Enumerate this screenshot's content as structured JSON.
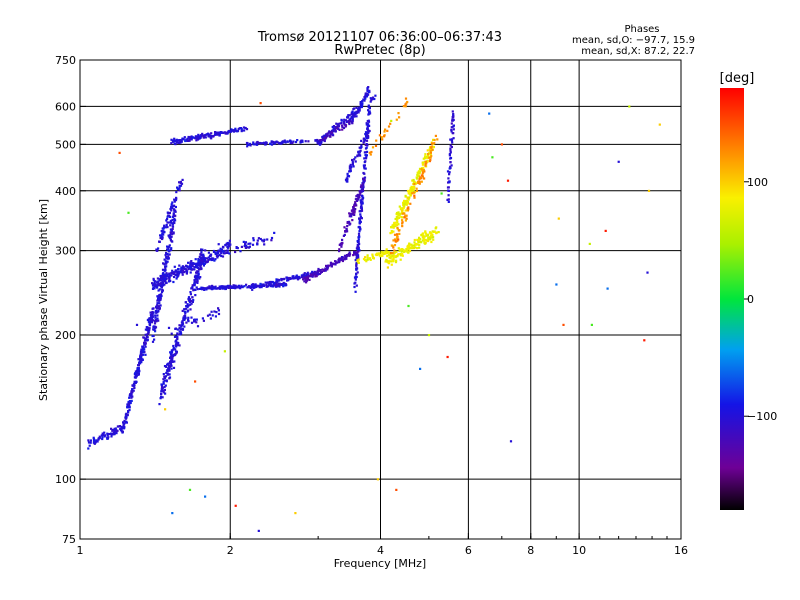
{
  "header": {
    "title_line1": "Tromsø 20121107 06:36:00–06:37:43",
    "title_line2": "RwPretec (8p)",
    "stats_title": "Phases",
    "stats_o": "mean, sd,O: −97.7, 15.9",
    "stats_x": "mean, sd,X: 87.2, 22.7"
  },
  "colorbar": {
    "unit_label": "[deg]",
    "ticks": [
      {
        "value": 100,
        "label": "100"
      },
      {
        "value": 0,
        "label": "0"
      },
      {
        "value": -100,
        "label": "−100"
      }
    ],
    "min": -180,
    "max": 180
  },
  "chart_data": {
    "type": "scatter",
    "xlabel": "Frequency [MHz]",
    "ylabel": "Stationary phase Virtual Height [km]",
    "xscale": "log",
    "yscale": "log",
    "xlim": [
      1,
      16
    ],
    "ylim": [
      75,
      750
    ],
    "x_ticks": [
      {
        "value": 1,
        "label": "1"
      },
      {
        "value": 2,
        "label": "2"
      },
      {
        "value": 4,
        "label": "4"
      },
      {
        "value": 6,
        "label": "6"
      },
      {
        "value": 8,
        "label": "8"
      },
      {
        "value": 10,
        "label": "10"
      },
      {
        "value": 16,
        "label": "16"
      }
    ],
    "x_gridlines": [
      2,
      4,
      6,
      8,
      10
    ],
    "y_ticks": [
      {
        "value": 75,
        "label": "75"
      },
      {
        "value": 100,
        "label": "100"
      },
      {
        "value": 200,
        "label": "200"
      },
      {
        "value": 300,
        "label": "300"
      },
      {
        "value": 400,
        "label": "400"
      },
      {
        "value": 500,
        "label": "500"
      },
      {
        "value": 600,
        "label": "600"
      },
      {
        "value": 750,
        "label": "750"
      }
    ],
    "y_gridlines": [
      100,
      200,
      300,
      400,
      500,
      600
    ],
    "grid": true,
    "series": [
      {
        "phase_deg": -100,
        "segments": [
          {
            "f0": 1.03,
            "f1": 1.22,
            "h0": 118,
            "h1": 128,
            "spread": 0.03,
            "n": 70
          },
          {
            "f0": 1.22,
            "f1": 1.4,
            "h0": 128,
            "h1": 225,
            "spread": 0.05,
            "n": 230
          },
          {
            "f0": 1.4,
            "f1": 1.55,
            "h0": 200,
            "h1": 360,
            "spread": 0.06,
            "n": 180
          },
          {
            "f0": 1.45,
            "f1": 1.78,
            "h0": 150,
            "h1": 300,
            "spread": 0.08,
            "n": 260
          },
          {
            "f0": 1.42,
            "f1": 1.6,
            "h0": 300,
            "h1": 420,
            "spread": 0.04,
            "n": 70
          },
          {
            "f0": 1.4,
            "f1": 2.0,
            "h0": 255,
            "h1": 305,
            "spread": 0.045,
            "n": 280
          },
          {
            "f0": 1.75,
            "f1": 2.6,
            "h0": 250,
            "h1": 255,
            "spread": 0.012,
            "n": 180
          },
          {
            "f0": 2.2,
            "f1": 3.0,
            "h0": 252,
            "h1": 270,
            "spread": 0.015,
            "n": 110
          },
          {
            "f0": 2.0,
            "f1": 2.45,
            "h0": 300,
            "h1": 320,
            "spread": 0.03,
            "n": 35
          },
          {
            "f0": 1.52,
            "f1": 2.15,
            "h0": 505,
            "h1": 540,
            "spread": 0.02,
            "n": 150
          },
          {
            "f0": 2.15,
            "f1": 3.0,
            "h0": 500,
            "h1": 510,
            "spread": 0.012,
            "n": 80
          },
          {
            "f0": 3.0,
            "f1": 3.6,
            "h0": 505,
            "h1": 590,
            "spread": 0.03,
            "n": 90
          },
          {
            "f0": 3.5,
            "f1": 3.8,
            "h0": 560,
            "h1": 650,
            "spread": 0.03,
            "n": 60
          },
          {
            "f0": 3.55,
            "f1": 3.8,
            "h0": 250,
            "h1": 600,
            "spread": 0.025,
            "n": 170
          },
          {
            "f0": 3.4,
            "f1": 3.8,
            "h0": 420,
            "h1": 540,
            "spread": 0.03,
            "n": 60
          },
          {
            "f0": 1.5,
            "f1": 1.95,
            "h0": 205,
            "h1": 225,
            "spread": 0.04,
            "n": 30
          }
        ]
      },
      {
        "phase_deg": -120,
        "segments": [
          {
            "f0": 2.8,
            "f1": 3.6,
            "h0": 260,
            "h1": 300,
            "spread": 0.02,
            "n": 120
          },
          {
            "f0": 3.3,
            "f1": 3.7,
            "h0": 300,
            "h1": 420,
            "spread": 0.03,
            "n": 90
          },
          {
            "f0": 3.0,
            "f1": 3.5,
            "h0": 505,
            "h1": 560,
            "spread": 0.02,
            "n": 40
          }
        ]
      },
      {
        "phase_deg": 80,
        "segments": [
          {
            "f0": 3.6,
            "f1": 4.2,
            "h0": 285,
            "h1": 300,
            "spread": 0.02,
            "n": 50
          },
          {
            "f0": 4.1,
            "f1": 5.2,
            "h0": 285,
            "h1": 330,
            "spread": 0.04,
            "n": 160
          },
          {
            "f0": 4.2,
            "f1": 5.1,
            "h0": 330,
            "h1": 500,
            "spread": 0.05,
            "n": 170
          }
        ]
      },
      {
        "phase_deg": 125,
        "segments": [
          {
            "f0": 4.2,
            "f1": 5.2,
            "h0": 300,
            "h1": 520,
            "spread": 0.05,
            "n": 90
          },
          {
            "f0": 3.8,
            "f1": 4.6,
            "h0": 480,
            "h1": 620,
            "spread": 0.04,
            "n": 25
          }
        ]
      },
      {
        "phase_deg": -105,
        "segments": [
          {
            "f0": 5.45,
            "f1": 5.6,
            "h0": 380,
            "h1": 580,
            "spread": 0.02,
            "n": 55
          },
          {
            "f0": 3.75,
            "f1": 3.9,
            "h0": 580,
            "h1": 640,
            "spread": 0.02,
            "n": 12
          }
        ]
      },
      {
        "phase_deg": 0,
        "scatter": true,
        "points": [
          [
            1.3,
            210
          ],
          [
            1.48,
            140
          ],
          [
            1.7,
            160
          ],
          [
            1.66,
            95
          ],
          [
            1.78,
            92
          ],
          [
            1.95,
            185
          ],
          [
            2.05,
            88
          ],
          [
            2.28,
            78
          ],
          [
            2.7,
            85
          ],
          [
            4.3,
            95
          ],
          [
            4.55,
            230
          ],
          [
            4.8,
            170
          ],
          [
            5.0,
            200
          ],
          [
            5.45,
            180
          ],
          [
            7.3,
            120
          ],
          [
            9.1,
            350
          ],
          [
            9.3,
            210
          ],
          [
            10.6,
            210
          ],
          [
            11.4,
            250
          ],
          [
            12.6,
            600
          ],
          [
            13.5,
            195
          ],
          [
            13.7,
            270
          ],
          [
            14.5,
            550
          ],
          [
            7.0,
            500
          ],
          [
            6.7,
            470
          ],
          [
            6.6,
            580
          ],
          [
            10.5,
            310
          ],
          [
            11.3,
            330
          ],
          [
            12.0,
            460
          ],
          [
            13.8,
            400
          ],
          [
            1.2,
            480
          ],
          [
            1.25,
            360
          ],
          [
            1.53,
            85
          ],
          [
            4.2,
            560
          ],
          [
            7.2,
            420
          ],
          [
            4.0,
            75
          ],
          [
            3.95,
            100
          ],
          [
            2.3,
            610
          ],
          [
            5.3,
            395
          ],
          [
            9.0,
            255
          ]
        ]
      }
    ]
  }
}
